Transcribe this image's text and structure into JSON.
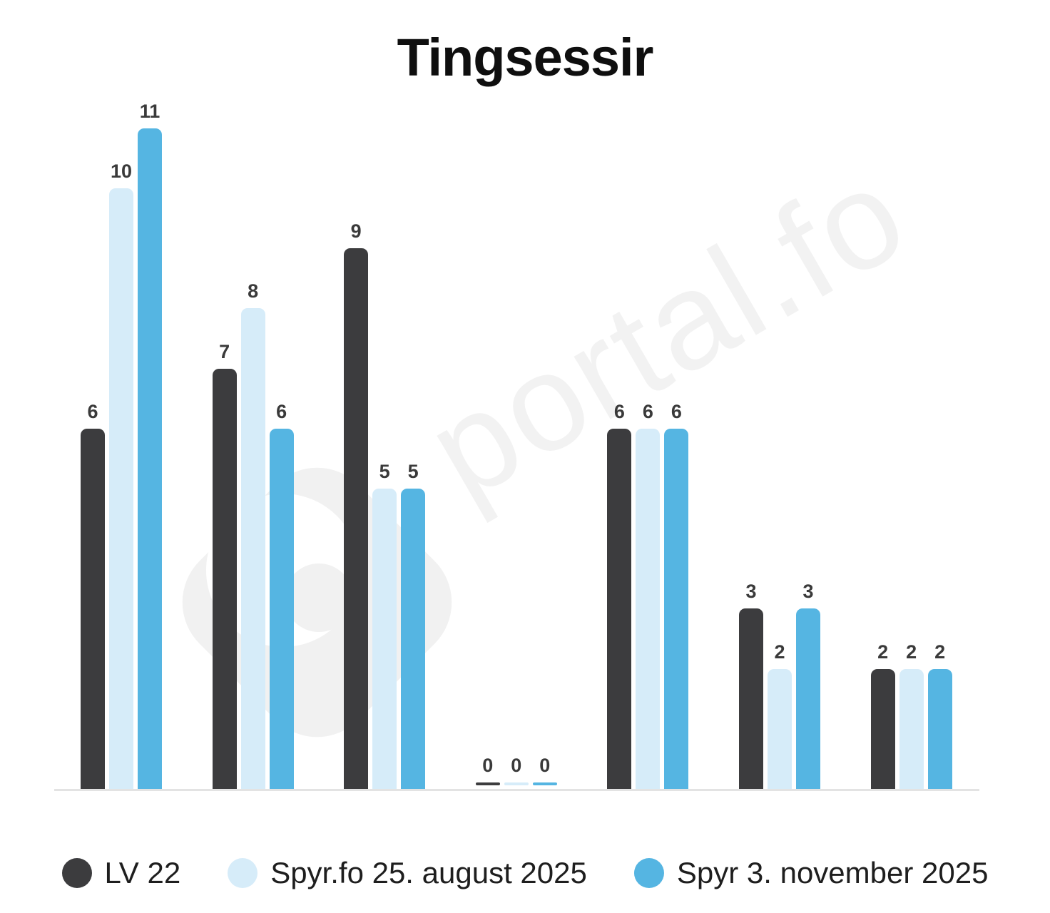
{
  "chart_data": {
    "type": "bar",
    "title": "Tingsessir",
    "watermark": "portal.fo",
    "categories": [
      "",
      "",
      "",
      "",
      "",
      "",
      ""
    ],
    "series": [
      {
        "name": "LV 22",
        "color": "#3c3c3e",
        "values": [
          6,
          7,
          9,
          0,
          6,
          3,
          2
        ]
      },
      {
        "name": "Spyr.fo 25. august 2025",
        "color": "#d6ecf9",
        "values": [
          10,
          8,
          5,
          0,
          6,
          2,
          2
        ]
      },
      {
        "name": "Spyr 3. november 2025",
        "color": "#55b5e2",
        "values": [
          11,
          6,
          5,
          0,
          6,
          3,
          2
        ]
      }
    ],
    "value_labels": true,
    "xlabel": "",
    "ylabel": "",
    "ylim": [
      0,
      11
    ],
    "grid": false,
    "legend_position": "bottom"
  }
}
